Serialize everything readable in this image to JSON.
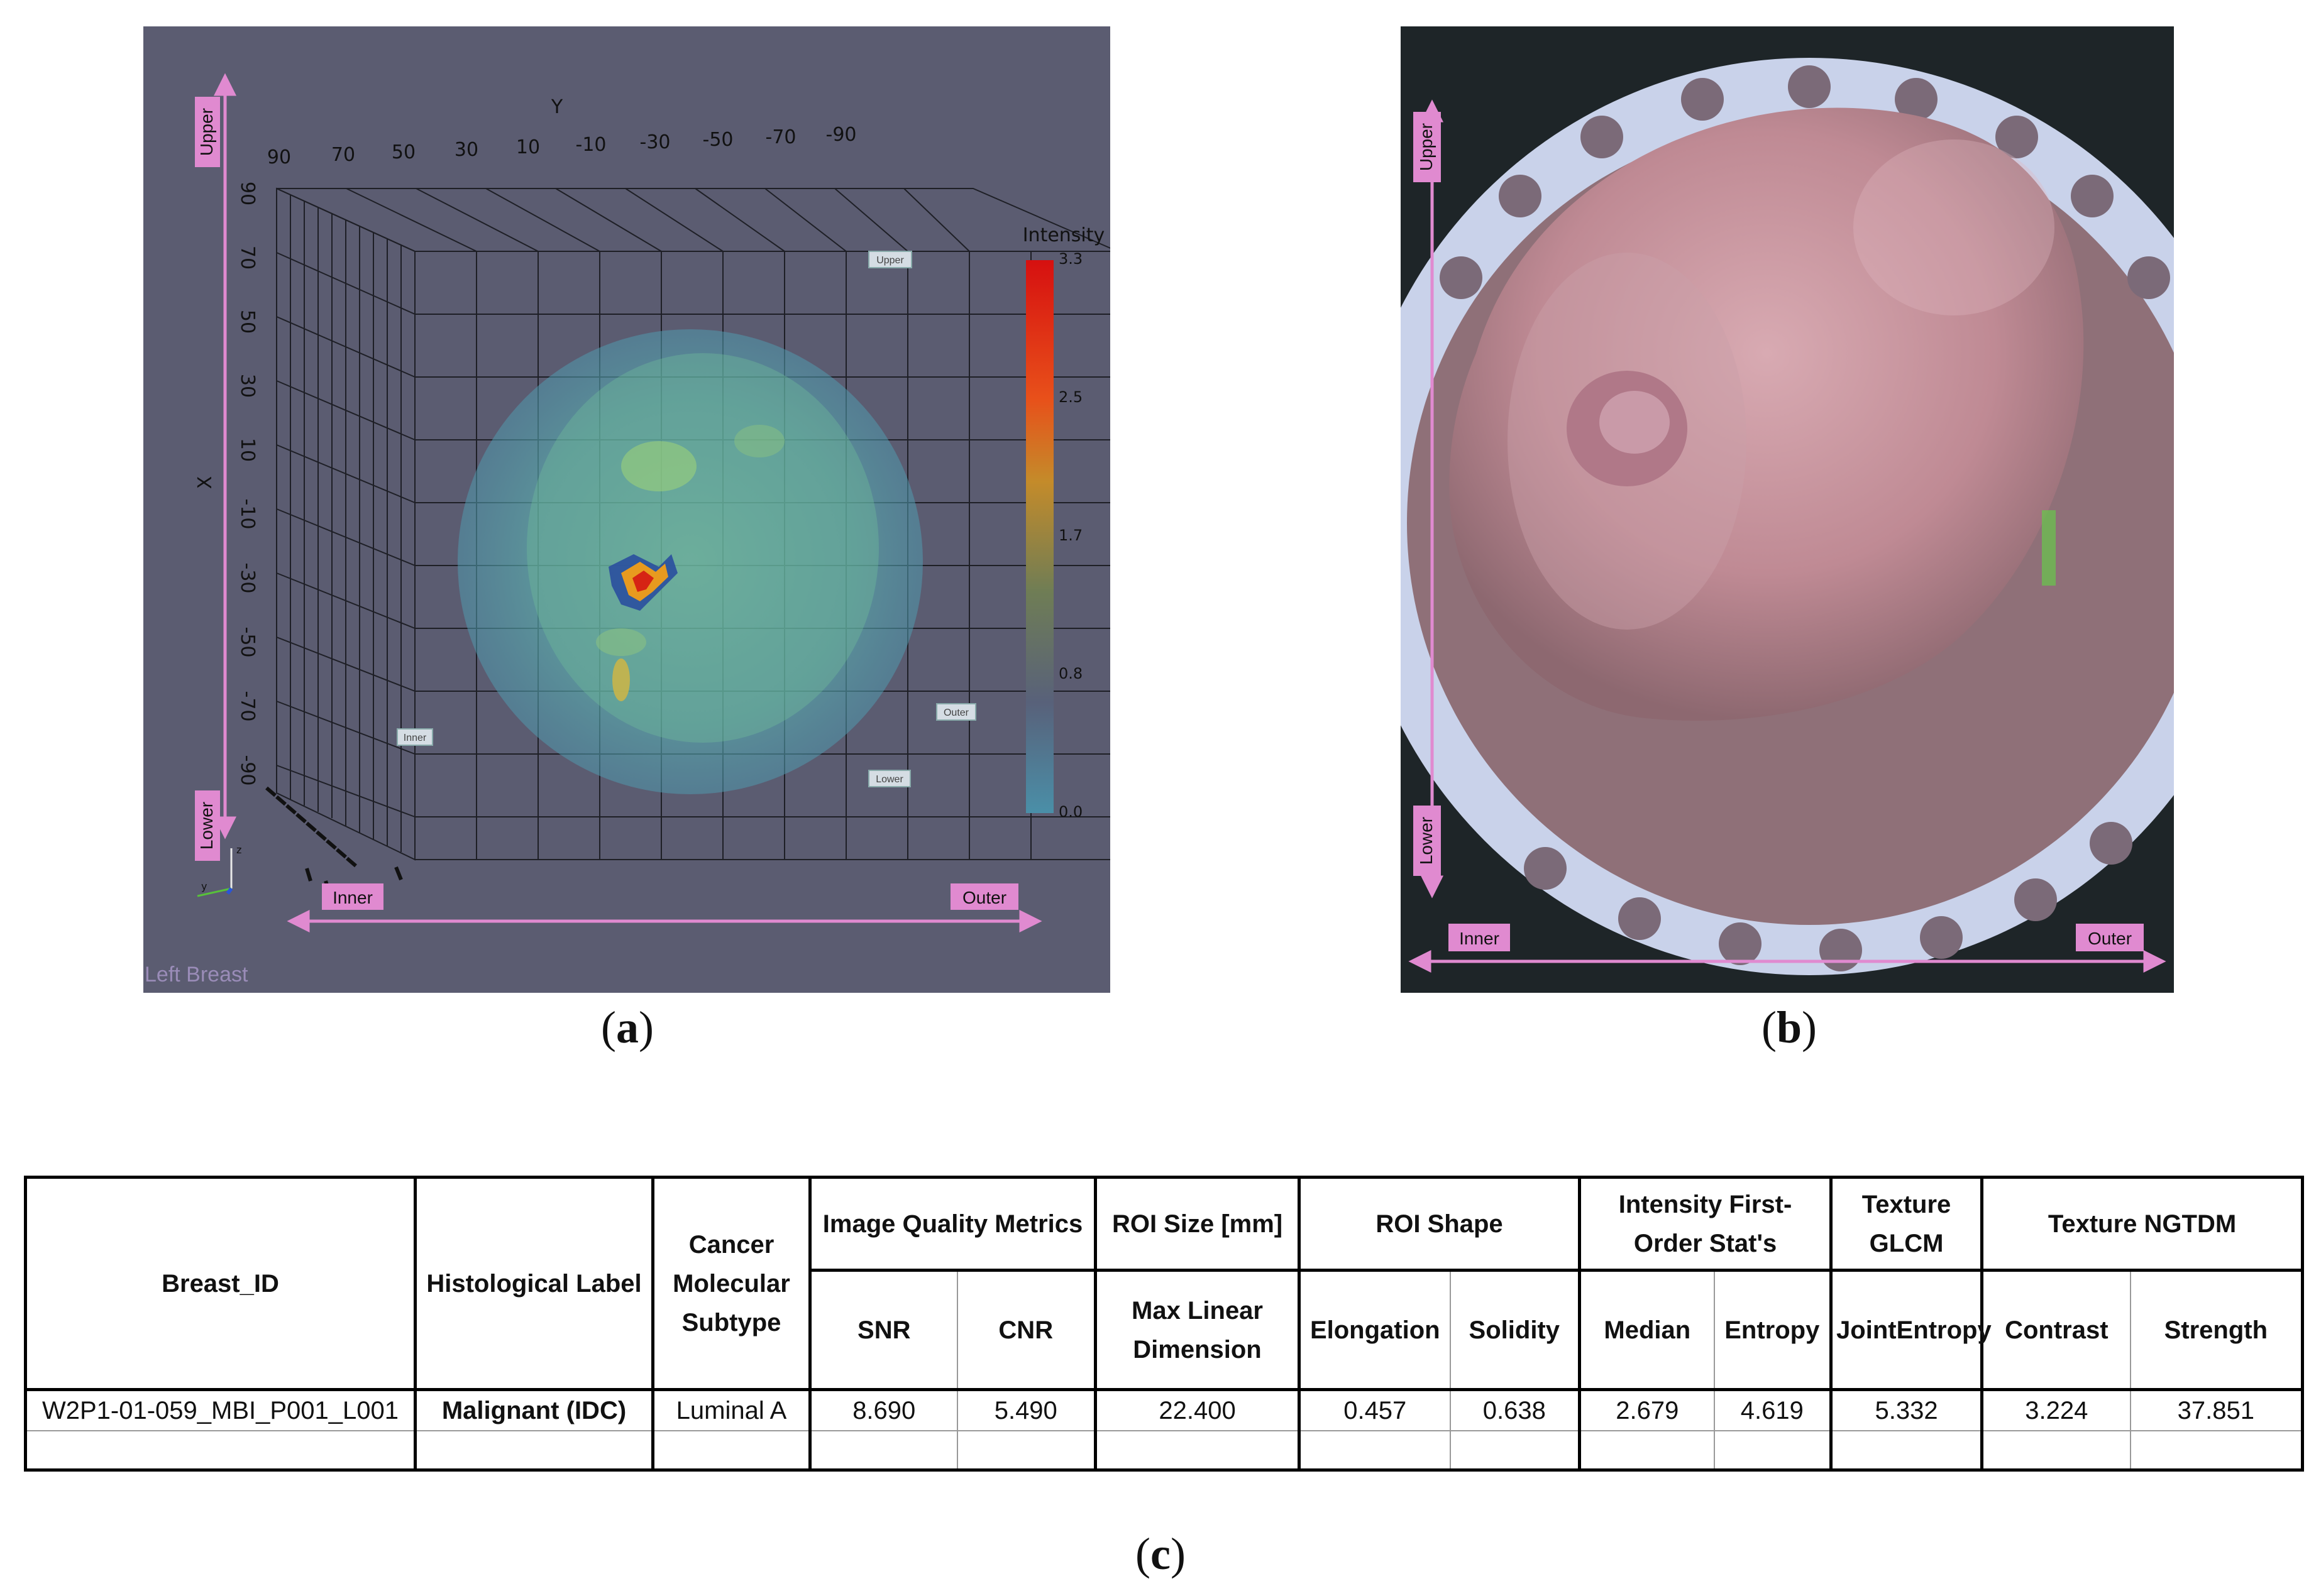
{
  "panel_a": {
    "caption_label": "a",
    "y_axis_name": "Y",
    "x_axis_name": "X",
    "y_ticks": [
      "90",
      "70",
      "50",
      "30",
      "10",
      "-10",
      "-30",
      "-50",
      "-70",
      "-90"
    ],
    "x_ticks": [
      "90",
      "70",
      "50",
      "30",
      "10",
      "-10",
      "-30",
      "-50",
      "-70",
      "-90"
    ],
    "colorbar_title": "Intensity",
    "colorbar_ticks": [
      "3.3",
      "2.5",
      "1.7",
      "0.8",
      "0.0"
    ],
    "orientation_labels": {
      "upper": "Upper",
      "lower": "Lower",
      "inner": "Inner",
      "outer": "Outer"
    },
    "in_scene_tags": {
      "upper": "Upper",
      "inner": "Inner",
      "outer": "Outer",
      "lower": "Lower"
    },
    "mini_axes": {
      "x": "x",
      "y": "y",
      "z": "z"
    },
    "view_label": "Left Breast"
  },
  "panel_b": {
    "caption_label": "b",
    "orientation_labels": {
      "upper": "Upper",
      "lower": "Lower",
      "inner": "Inner",
      "outer": "Outer"
    }
  },
  "table": {
    "caption_label": "c",
    "headers": {
      "breast_id": "Breast_ID",
      "histological_label": "Histological Label",
      "cancer_molecular_subtype": "Cancer Molecular Subtype",
      "image_quality": "Image Quality  Metrics",
      "roi_size": "ROI Size [mm]",
      "roi_shape": "ROI Shape",
      "intensity": "Intensity First-Order Stat's",
      "texture_glcm": "Texture GLCM",
      "texture_ngtdm": "Texture NGTDM",
      "snr": "SNR",
      "cnr": "CNR",
      "max_linear_dimension": "Max Linear Dimension",
      "elongation": "Elongation",
      "solidity": "Solidity",
      "median": "Median",
      "entropy": "Entropy",
      "joint_entropy": "JointEntropy",
      "contrast": "Contrast",
      "strength": "Strength"
    },
    "row": {
      "breast_id": "W2P1-01-059_MBI_P001_L001",
      "histological_label": "Malignant (IDC)",
      "subtype": "Luminal A",
      "snr": "8.690",
      "cnr": "5.490",
      "max_linear_dimension": "22.400",
      "elongation": "0.457",
      "solidity": "0.638",
      "median": "2.679",
      "entropy": "4.619",
      "joint_entropy": "5.332",
      "contrast": "3.224",
      "strength": "37.851"
    }
  }
}
